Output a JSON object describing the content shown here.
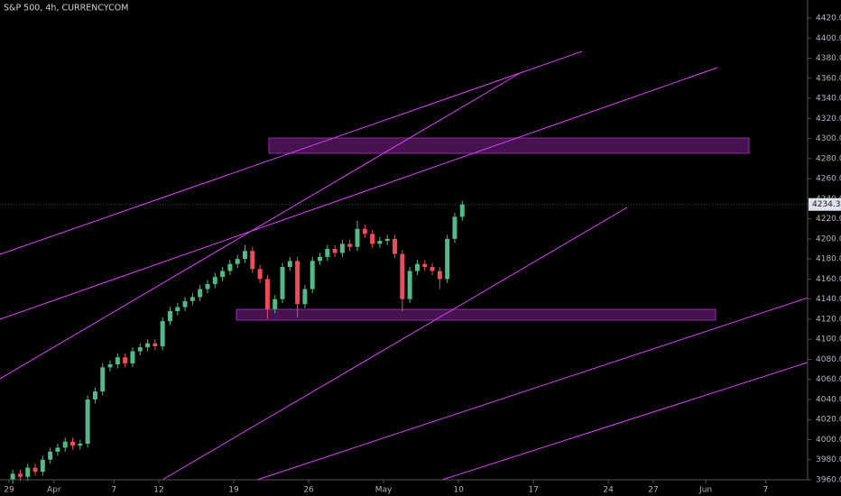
{
  "chart_data": {
    "type": "candlestick",
    "title": "S&P 500, 4h, CURRENCYCOM",
    "xlim": [
      -0.6,
      53.3
    ],
    "ylim": [
      3960,
      4438
    ],
    "xticks": [
      {
        "value": 0,
        "label": "29"
      },
      {
        "value": 3,
        "label": "Apr"
      },
      {
        "value": 7,
        "label": "7"
      },
      {
        "value": 10,
        "label": "12"
      },
      {
        "value": 15,
        "label": "19"
      },
      {
        "value": 20,
        "label": "26"
      },
      {
        "value": 25,
        "label": "May"
      },
      {
        "value": 30,
        "label": "10"
      },
      {
        "value": 35,
        "label": "17"
      },
      {
        "value": 40,
        "label": "24"
      },
      {
        "value": 43,
        "label": "27"
      },
      {
        "value": 46.5,
        "label": "Jun"
      },
      {
        "value": 50.5,
        "label": "7"
      }
    ],
    "yticks": [
      {
        "value": 3960,
        "label": "3960.0"
      },
      {
        "value": 3980,
        "label": "3980.0"
      },
      {
        "value": 4000,
        "label": "4000.0"
      },
      {
        "value": 4020,
        "label": "4020.0"
      },
      {
        "value": 4040,
        "label": "4040.0"
      },
      {
        "value": 4060,
        "label": "4060.0"
      },
      {
        "value": 4080,
        "label": "4080.0"
      },
      {
        "value": 4100,
        "label": "4100.0"
      },
      {
        "value": 4120,
        "label": "4120.0"
      },
      {
        "value": 4140,
        "label": "4140.0"
      },
      {
        "value": 4160,
        "label": "4160.0"
      },
      {
        "value": 4180,
        "label": "4180.0"
      },
      {
        "value": 4200,
        "label": "4200.0"
      },
      {
        "value": 4220,
        "label": "4220.0"
      },
      {
        "value": 4240,
        "label": "4240.0"
      },
      {
        "value": 4260,
        "label": "4260.0"
      },
      {
        "value": 4280,
        "label": "4280.0"
      },
      {
        "value": 4300,
        "label": "4300.0"
      },
      {
        "value": 4320,
        "label": "4320.0"
      },
      {
        "value": 4340,
        "label": "4340.0"
      },
      {
        "value": 4360,
        "label": "4360.0"
      },
      {
        "value": 4380,
        "label": "4380.0"
      },
      {
        "value": 4400,
        "label": "4400.0"
      },
      {
        "value": 4420,
        "label": "4420.0"
      }
    ],
    "last_price": 4234.3,
    "up_color": "#53b987",
    "down_color": "#eb4d5c",
    "x": [
      0.25,
      0.75,
      1.25,
      1.75,
      2.25,
      2.75,
      3.25,
      3.75,
      4.25,
      4.75,
      5.25,
      5.75,
      6.25,
      6.75,
      7.25,
      7.75,
      8.25,
      8.75,
      9.25,
      9.75,
      10.25,
      10.75,
      11.25,
      11.75,
      12.25,
      12.75,
      13.25,
      13.75,
      14.25,
      14.75,
      15.25,
      15.75,
      16.25,
      16.75,
      17.25,
      17.75,
      18.25,
      18.75,
      19.25,
      19.75,
      20.25,
      20.75,
      21.25,
      21.75,
      22.25,
      22.75,
      23.25,
      23.75,
      24.25,
      24.75,
      25.25,
      25.75,
      26.25,
      26.75,
      27.25,
      27.75,
      28.25,
      28.75,
      29.25,
      29.75,
      30.25
    ],
    "open": [
      3960,
      3966,
      3963,
      3972,
      3968,
      3980,
      3988,
      3992,
      3998,
      3994,
      3996,
      4040,
      4048,
      4072,
      4075,
      4082,
      4076,
      4088,
      4092,
      4096,
      4093,
      4118,
      4128,
      4132,
      4138,
      4142,
      4150,
      4155,
      4162,
      4168,
      4175,
      4180,
      4188,
      4170,
      4160,
      4130,
      4140,
      4172,
      4178,
      4135,
      4150,
      4178,
      4182,
      4190,
      4186,
      4195,
      4192,
      4210,
      4205,
      4195,
      4198,
      4200,
      4185,
      4140,
      4168,
      4175,
      4172,
      4168,
      4160,
      4200,
      4222
    ],
    "high": [
      3970,
      3970,
      3976,
      3976,
      3984,
      3992,
      3996,
      4002,
      4002,
      4000,
      4044,
      4052,
      4076,
      4079,
      4086,
      4086,
      4092,
      4096,
      4100,
      4100,
      4122,
      4132,
      4136,
      4142,
      4146,
      4154,
      4159,
      4166,
      4172,
      4179,
      4184,
      4194,
      4192,
      4174,
      4164,
      4144,
      4176,
      4182,
      4182,
      4154,
      4182,
      4186,
      4194,
      4194,
      4199,
      4199,
      4218,
      4214,
      4209,
      4202,
      4204,
      4204,
      4189,
      4172,
      4179,
      4179,
      4176,
      4172,
      4204,
      4226,
      4238
    ],
    "low": [
      3956,
      3959,
      3959,
      3964,
      3964,
      3976,
      3984,
      3988,
      3990,
      3990,
      3992,
      4036,
      4044,
      4068,
      4071,
      4072,
      4072,
      4084,
      4088,
      4089,
      4089,
      4114,
      4124,
      4128,
      4134,
      4138,
      4146,
      4151,
      4158,
      4164,
      4171,
      4176,
      4166,
      4156,
      4120,
      4126,
      4136,
      4168,
      4122,
      4131,
      4146,
      4174,
      4178,
      4182,
      4182,
      4188,
      4188,
      4201,
      4191,
      4191,
      4194,
      4181,
      4128,
      4136,
      4164,
      4168,
      4164,
      4150,
      4156,
      4196,
      4218
    ],
    "close": [
      3966,
      3963,
      3972,
      3968,
      3980,
      3988,
      3992,
      3998,
      3994,
      3996,
      4040,
      4048,
      4072,
      4075,
      4082,
      4076,
      4088,
      4092,
      4096,
      4093,
      4118,
      4128,
      4132,
      4138,
      4142,
      4150,
      4155,
      4162,
      4168,
      4175,
      4180,
      4188,
      4170,
      4160,
      4130,
      4140,
      4172,
      4178,
      4135,
      4150,
      4178,
      4182,
      4190,
      4186,
      4195,
      4192,
      4210,
      4205,
      4195,
      4198,
      4200,
      4185,
      4140,
      4168,
      4175,
      4172,
      4168,
      4160,
      4200,
      4222,
      4234.3
    ]
  }
}
